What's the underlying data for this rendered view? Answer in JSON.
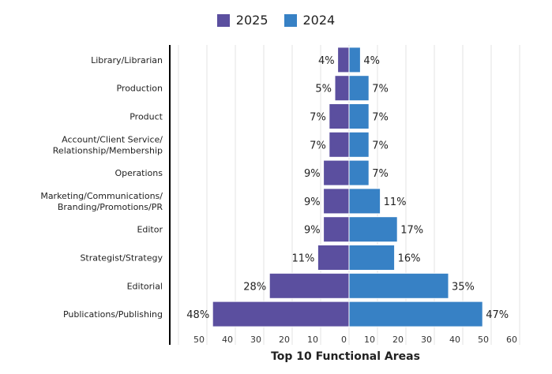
{
  "chart_data": {
    "type": "bar",
    "orientation": "horizontal",
    "layout": "diverging",
    "title": "Top 10 Functional Areas",
    "categories": [
      "Library/Librarian",
      "Production",
      "Product",
      "Account/Client Service/\nRelationship/Membership",
      "Operations",
      "Marketing/Communications/\nBranding/Promotions/PR",
      "Editor",
      "Strategist/Strategy",
      "Editorial",
      "Publications/Publishing"
    ],
    "series": [
      {
        "name": "2025",
        "color": "#5b4f9f",
        "side": "left",
        "values": [
          4,
          5,
          7,
          7,
          9,
          9,
          9,
          11,
          28,
          48
        ]
      },
      {
        "name": "2024",
        "color": "#3781c5",
        "side": "right",
        "values": [
          4,
          7,
          7,
          7,
          7,
          11,
          17,
          16,
          35,
          47
        ]
      }
    ],
    "value_suffix": "%",
    "xlim": [
      -60,
      60
    ],
    "xticks": [
      -50,
      -40,
      -30,
      -20,
      -10,
      0,
      10,
      20,
      30,
      40,
      50,
      60
    ],
    "xtick_labels": [
      "50",
      "40",
      "30",
      "20",
      "10",
      "0",
      "10",
      "20",
      "30",
      "40",
      "50",
      "60"
    ],
    "grid": true,
    "legend_position": "top"
  }
}
